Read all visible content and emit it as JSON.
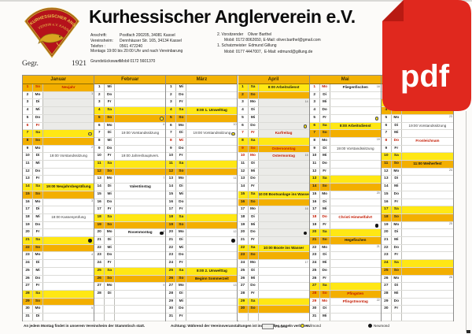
{
  "header": {
    "title": "Kurhessischer Anglerverein e.V.",
    "logo": {
      "arc_text1": "KURHESSISCHER ANGLER",
      "arc_text2": "VEREIN e.V. KASSEL",
      "founded_left": "Gegr.",
      "founded_right": "1921"
    },
    "address_rows": [
      {
        "l": "Anschrift:",
        "v": "Postfach 200205, 34081 Kassel"
      },
      {
        "l": "Vereinsheim:",
        "v": "Dennhäuser Str. 165, 34134 Kassel"
      },
      {
        "l": "Telefon :",
        "v": "0561 472240"
      },
      {
        "l": "",
        "v": "Montags 19:00 bis 20:00 Uhr und nach Vereinbarung",
        "full": true
      },
      {
        "gap": true
      },
      {
        "l": "Grundstückswart:",
        "v": "Mobil 0172 5601370"
      }
    ],
    "contact_lines": [
      {
        "t": "2. Vorsitzender    Oliver Barthel",
        "ind": false
      },
      {
        "t": "Mobil: 0172 8062650, E-Mail: oliver.barthel@gmail.com",
        "ind": true
      },
      {
        "t": "1. Schatzmeister  Edmund Gillung",
        "ind": false
      },
      {
        "t": "Mobil: 0177 4447007,  E-Mail: edmund@gillung.de",
        "ind": true
      }
    ]
  },
  "pdf_icon": {
    "label": "pdf",
    "color": "#e0281e",
    "fold_color": "#b81a12"
  },
  "calendar": {
    "weekday_names": [
      "Mo",
      "Di",
      "Mi",
      "Do",
      "Fr",
      "Sa",
      "So"
    ],
    "colors": {
      "saturday": "#ffe714",
      "sunday": "#f3af00",
      "holiday_text": "#c41a00",
      "ferien": "#ebebe8",
      "header": "#f3b204"
    },
    "months": [
      {
        "name": "Januar",
        "days": 31,
        "start": 6,
        "red_days": [
          1,
          6
        ],
        "ferien": [
          2,
          6
        ],
        "weeks": {
          "2": "1",
          "9": "2",
          "16": "3",
          "23": "4",
          "30": "5"
        },
        "moons": {
          "7": "full",
          "21": "new"
        },
        "events": {
          "1": {
            "t": "Neujahr",
            "s": "red"
          },
          "10": {
            "t": "19:00 Vorstandssitzung",
            "s": "norm"
          },
          "14": {
            "t": "19:00 Neujahrsbegrüßung",
            "s": "bold"
          },
          "18": {
            "t": "18:00 Kassenprüfung",
            "s": "norm"
          }
        }
      },
      {
        "name": "Februar",
        "days": 28,
        "start": 2,
        "red_days": [],
        "ferien": null,
        "weeks": {
          "6": "6",
          "13": "7",
          "20": "8",
          "27": "9"
        },
        "moons": {
          "5": "full",
          "20": "new"
        },
        "events": {
          "7": {
            "t": "19:00 Vorstandssitzung",
            "s": "norm"
          },
          "10": {
            "t": "19:00 Jahreshauptvers.",
            "s": "norm"
          },
          "14": {
            "t": "Valentinstag",
            "s": "bold"
          },
          "20": {
            "t": "Rosenmontag",
            "s": "bold"
          }
        }
      },
      {
        "name": "März",
        "days": 31,
        "start": 2,
        "red_days": [
          8
        ],
        "ferien": null,
        "weeks": {
          "6": "10",
          "13": "11",
          "20": "12",
          "27": "13"
        },
        "moons": {
          "7": "full",
          "21": "new"
        },
        "events": {
          "4": {
            "t": "8:00 1. Umwelttag",
            "s": "bold"
          },
          "7": {
            "t": "19:00 Vorstandssitzung",
            "s": "norm"
          },
          "25": {
            "t": "8:00 2. Umwelttag",
            "s": "bold"
          },
          "26": {
            "t": "Beginn Sommerzeit",
            "s": "bold"
          }
        }
      },
      {
        "name": "April",
        "days": 30,
        "start": 5,
        "red_days": [
          7,
          9,
          10
        ],
        "ferien": [
          3,
          21
        ],
        "weeks": {
          "3": "14",
          "10": "15",
          "17": "16",
          "24": "17"
        },
        "moons": {
          "6": "full",
          "20": "new"
        },
        "events": {
          "1": {
            "t": "8:00 Arbeitsdienst",
            "s": "bold"
          },
          "7": {
            "t": "Karfreitag",
            "s": "red"
          },
          "9": {
            "t": "Ostersonntag",
            "s": "red"
          },
          "10": {
            "t": "Ostermontag",
            "s": "red"
          },
          "15": {
            "t": "10:00 Bootsanlage ins Wasser",
            "s": "bold"
          },
          "22": {
            "t": "10:00 Boote ins Wasser",
            "s": "bold"
          }
        }
      },
      {
        "name": "Mai",
        "days": 31,
        "start": 0,
        "red_days": [
          1,
          18,
          28,
          29
        ],
        "ferien": null,
        "weeks": {
          "1": "18",
          "8": "19",
          "15": "20",
          "22": "21",
          "29": "22"
        },
        "moons": {
          "5": "full",
          "19": "new"
        },
        "events": {
          "1": {
            "t": "Fliegenfischen",
            "s": "bold"
          },
          "6": {
            "t": "8:00 Arbeitsdienst",
            "s": "bold"
          },
          "9": {
            "t": "19:00 Vorstandssitzung",
            "s": "norm"
          },
          "18": {
            "t": "Christi Himmelfahrt",
            "s": "red"
          },
          "21": {
            "t": "Hegefischen",
            "s": "bold"
          },
          "28": {
            "t": "Pfingsten",
            "s": "red"
          },
          "29": {
            "t": "Pfingstmontag",
            "s": "red"
          }
        }
      },
      {
        "name": "Juni",
        "days": 30,
        "start": 3,
        "red_days": [
          8
        ],
        "ferien": null,
        "weeks": {
          "5": "23",
          "12": "24",
          "19": "25",
          "26": "26"
        },
        "moons": {},
        "events": {
          "6": {
            "t": "19:00 Vorstandssitzung",
            "s": "norm"
          },
          "8": {
            "t": "Fronleichnam",
            "s": "red"
          },
          "11": {
            "t": "11:00 Weiherfest",
            "s": "bold"
          }
        }
      }
    ]
  },
  "footer": {
    "note_monday": "An jedem Montag findet in unserem Vereinsheim der Stammtisch statt.",
    "note_warning": "Achtung: Während der Vereinsveranstaltungen ist individuelles Angeln verboten.",
    "legend": [
      {
        "icon": "ferien-box",
        "label": "Ferien"
      },
      {
        "icon": "full-moon",
        "label": "Vollmond"
      },
      {
        "icon": "new-moon",
        "label": "Neumond"
      }
    ]
  }
}
